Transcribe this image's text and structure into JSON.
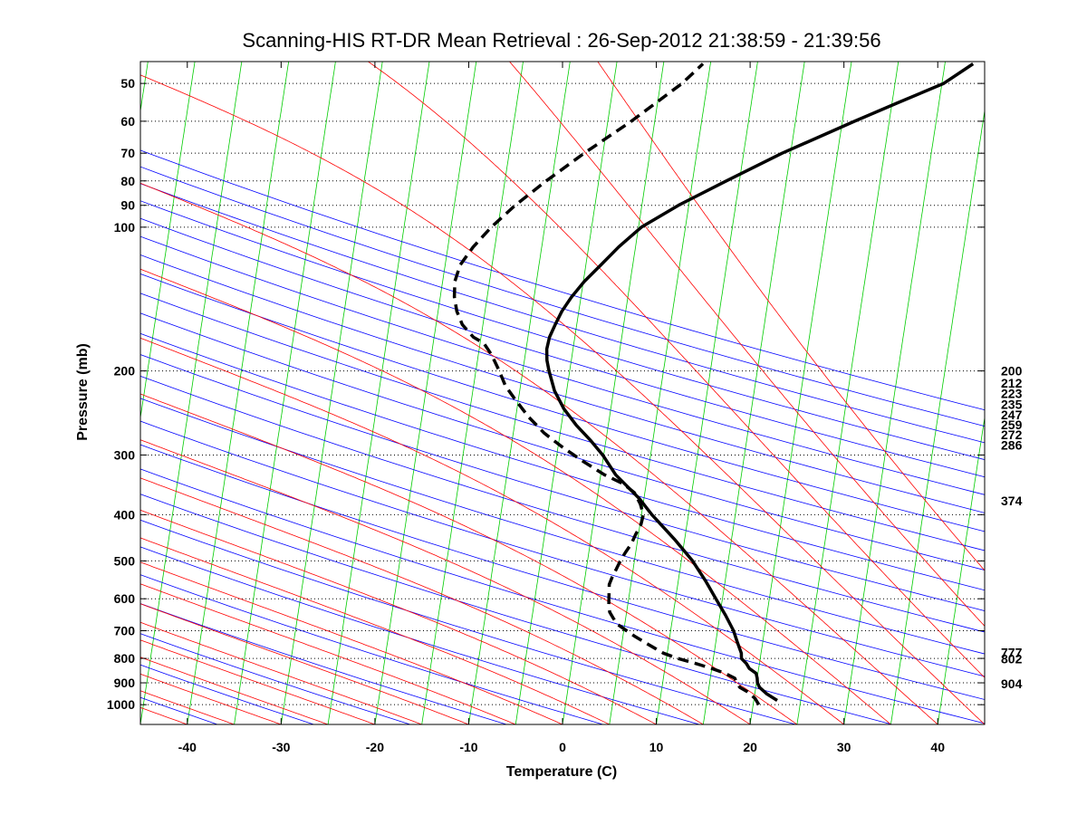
{
  "chart_data": {
    "type": "line",
    "title": "Scanning-HIS RT-DR Mean Retrieval : 26-Sep-2012 21:38:59 - 21:39:56",
    "xlabel": "Temperature (C)",
    "ylabel": "Pressure (mb)",
    "xlim": [
      -45,
      45
    ],
    "ylim": [
      1100,
      45
    ],
    "y_scale": "log",
    "y_reversed": true,
    "skew": "skew-T log-p diagram",
    "grid": "dotted horizontal lines at labeled pressures",
    "x_ticks": [
      -40,
      -30,
      -20,
      -10,
      0,
      10,
      20,
      30,
      40
    ],
    "y_ticks": [
      50,
      60,
      70,
      80,
      90,
      100,
      200,
      300,
      400,
      500,
      600,
      700,
      800,
      900,
      1000
    ],
    "right_labels": [
      {
        "text": "200",
        "pressure": 200
      },
      {
        "text": "212",
        "pressure": 212
      },
      {
        "text": "223",
        "pressure": 223
      },
      {
        "text": "235",
        "pressure": 235
      },
      {
        "text": "247",
        "pressure": 247
      },
      {
        "text": "259",
        "pressure": 259
      },
      {
        "text": "272",
        "pressure": 272
      },
      {
        "text": "286",
        "pressure": 286
      },
      {
        "text": "374",
        "pressure": 374
      },
      {
        "text": "777",
        "pressure": 777
      },
      {
        "text": "802",
        "pressure": 802
      },
      {
        "text": "904",
        "pressure": 904
      }
    ],
    "background_lines": {
      "dry_adiabats_color": "#0000ff",
      "moist_adiabats_color": "#ff0000",
      "isotherms_color": "#00cc00",
      "dry_adiabat_theta_K": [
        230,
        240,
        250,
        260,
        270,
        280,
        290,
        300,
        310,
        320,
        330,
        340,
        350,
        360,
        370,
        380,
        390,
        400,
        410,
        420,
        430,
        440,
        450,
        460,
        470
      ],
      "moist_adiabat_start_C": [
        -40,
        -35,
        -30,
        -25,
        -20,
        -15,
        -10,
        -5,
        0,
        5,
        10,
        15,
        20,
        25,
        30,
        35,
        40,
        45,
        50,
        55,
        60
      ],
      "isotherm_step_C": 5
    },
    "series": [
      {
        "style": "solid",
        "color": "#000000",
        "points": [
          {
            "p": 980,
            "t": 22.5
          },
          {
            "p": 950,
            "t": 21.3
          },
          {
            "p": 920,
            "t": 20.4
          },
          {
            "p": 900,
            "t": 20.1
          },
          {
            "p": 880,
            "t": 20.0
          },
          {
            "p": 860,
            "t": 19.8
          },
          {
            "p": 840,
            "t": 19.0
          },
          {
            "p": 820,
            "t": 18.6
          },
          {
            "p": 800,
            "t": 18.0
          },
          {
            "p": 780,
            "t": 17.9
          },
          {
            "p": 760,
            "t": 17.6
          },
          {
            "p": 740,
            "t": 17.3
          },
          {
            "p": 720,
            "t": 17.0
          },
          {
            "p": 700,
            "t": 16.7
          },
          {
            "p": 650,
            "t": 15.6
          },
          {
            "p": 600,
            "t": 14.3
          },
          {
            "p": 550,
            "t": 12.9
          },
          {
            "p": 500,
            "t": 11.2
          },
          {
            "p": 450,
            "t": 8.9
          },
          {
            "p": 400,
            "t": 6.1
          },
          {
            "p": 370,
            "t": 4.5
          },
          {
            "p": 350,
            "t": 3.1
          },
          {
            "p": 330,
            "t": 1.6
          },
          {
            "p": 300,
            "t": -0.1
          },
          {
            "p": 280,
            "t": -1.6
          },
          {
            "p": 260,
            "t": -3.4
          },
          {
            "p": 240,
            "t": -5.0
          },
          {
            "p": 220,
            "t": -6.3
          },
          {
            "p": 200,
            "t": -7.2
          },
          {
            "p": 190,
            "t": -7.6
          },
          {
            "p": 180,
            "t": -7.8
          },
          {
            "p": 170,
            "t": -7.7
          },
          {
            "p": 160,
            "t": -7.3
          },
          {
            "p": 150,
            "t": -6.8
          },
          {
            "p": 140,
            "t": -6.0
          },
          {
            "p": 130,
            "t": -4.9
          },
          {
            "p": 120,
            "t": -3.4
          },
          {
            "p": 110,
            "t": -1.8
          },
          {
            "p": 100,
            "t": 0.3
          },
          {
            "p": 90,
            "t": 3.9
          },
          {
            "p": 80,
            "t": 8.6
          },
          {
            "p": 70,
            "t": 14.1
          },
          {
            "p": 60,
            "t": 21.3
          },
          {
            "p": 55,
            "t": 25.5
          },
          {
            "p": 50,
            "t": 30.2
          },
          {
            "p": 45.5,
            "t": 33.0
          }
        ]
      },
      {
        "style": "dashed",
        "color": "#000000",
        "points": [
          {
            "p": 1000,
            "t": 20.6
          },
          {
            "p": 970,
            "t": 20.1
          },
          {
            "p": 940,
            "t": 19.2
          },
          {
            "p": 920,
            "t": 18.3
          },
          {
            "p": 900,
            "t": 17.9
          },
          {
            "p": 880,
            "t": 17.6
          },
          {
            "p": 860,
            "t": 16.5
          },
          {
            "p": 840,
            "t": 15.0
          },
          {
            "p": 820,
            "t": 13.2
          },
          {
            "p": 800,
            "t": 11.2
          },
          {
            "p": 780,
            "t": 9.6
          },
          {
            "p": 760,
            "t": 8.5
          },
          {
            "p": 740,
            "t": 7.4
          },
          {
            "p": 720,
            "t": 6.3
          },
          {
            "p": 700,
            "t": 5.3
          },
          {
            "p": 680,
            "t": 4.3
          },
          {
            "p": 660,
            "t": 3.7
          },
          {
            "p": 640,
            "t": 3.2
          },
          {
            "p": 620,
            "t": 3.0
          },
          {
            "p": 600,
            "t": 2.9
          },
          {
            "p": 580,
            "t": 2.8
          },
          {
            "p": 560,
            "t": 2.7
          },
          {
            "p": 540,
            "t": 2.9
          },
          {
            "p": 520,
            "t": 3.2
          },
          {
            "p": 500,
            "t": 3.5
          },
          {
            "p": 480,
            "t": 3.9
          },
          {
            "p": 460,
            "t": 4.4
          },
          {
            "p": 440,
            "t": 4.7
          },
          {
            "p": 420,
            "t": 5.1
          },
          {
            "p": 400,
            "t": 5.2
          },
          {
            "p": 380,
            "t": 4.7
          },
          {
            "p": 360,
            "t": 3.9
          },
          {
            "p": 345,
            "t": 2.6
          },
          {
            "p": 330,
            "t": 0.4
          },
          {
            "p": 310,
            "t": -2.0
          },
          {
            "p": 290,
            "t": -4.4
          },
          {
            "p": 270,
            "t": -6.7
          },
          {
            "p": 250,
            "t": -8.6
          },
          {
            "p": 230,
            "t": -10.3
          },
          {
            "p": 215,
            "t": -11.6
          },
          {
            "p": 200,
            "t": -12.5
          },
          {
            "p": 185,
            "t": -13.6
          },
          {
            "p": 175,
            "t": -14.6
          },
          {
            "p": 170,
            "t": -15.8
          },
          {
            "p": 160,
            "t": -17.2
          },
          {
            "p": 150,
            "t": -18.0
          },
          {
            "p": 140,
            "t": -18.5
          },
          {
            "p": 130,
            "t": -18.7
          },
          {
            "p": 120,
            "t": -18.4
          },
          {
            "p": 110,
            "t": -17.3
          },
          {
            "p": 100,
            "t": -15.7
          },
          {
            "p": 90,
            "t": -13.5
          },
          {
            "p": 80,
            "t": -10.6
          },
          {
            "p": 70,
            "t": -7.0
          },
          {
            "p": 60,
            "t": -2.5
          },
          {
            "p": 50,
            "t": 2.3
          },
          {
            "p": 45.5,
            "t": 4.2
          }
        ]
      }
    ]
  }
}
